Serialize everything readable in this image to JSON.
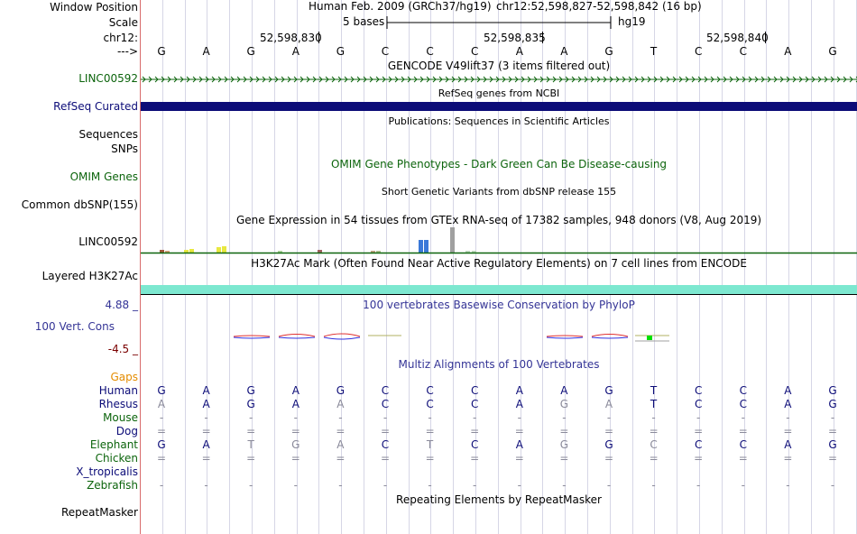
{
  "colors": {
    "lincGreen": "#0c640c",
    "refseqNavy": "#0c0c78",
    "h3k27ac": "#7de8d0",
    "conservation": "#343496",
    "negative": "#7a0000",
    "gaps": "#e48c00",
    "species_green": "#0c640c",
    "species_navy": "#0c0c78"
  },
  "labels": {
    "window_position": "Window Position",
    "scale": "Scale",
    "chrom": "chr12:",
    "arrow": "--->",
    "linc": "LINC00592",
    "refseq": "RefSeq Curated",
    "sequences": "Sequences",
    "snps": "SNPs",
    "omim": "OMIM Genes",
    "dbsnp": "Common dbSNP(155)",
    "gtex": "LINC00592",
    "h3k27ac": "Layered H3K27Ac",
    "cons_max": "4.88 _",
    "cons": "100 Vert. Cons",
    "cons_min": "-4.5 _",
    "gaps": "Gaps",
    "repeatmasker": "RepeatMasker"
  },
  "header": {
    "assembly": "Human Feb. 2009 (GRCh37/hg19)",
    "position": "chr12:52,598,827-52,598,842 (16 bp)",
    "scale_text": "5 bases",
    "scale_db": "hg19",
    "ticks": [
      "52,598,830",
      "52,598,835",
      "52,598,840"
    ]
  },
  "bases": [
    "G",
    "A",
    "G",
    "A",
    "G",
    "C",
    "C",
    "C",
    "A",
    "A",
    "G",
    "T",
    "C",
    "C",
    "A",
    "G"
  ],
  "tracks": {
    "gencode": "GENCODE V49lift37 (3 items filtered out)",
    "refseq": "RefSeq genes from NCBI",
    "publications": "Publications: Sequences in Scientific Articles",
    "omim": "OMIM Gene Phenotypes - Dark Green Can Be Disease-causing",
    "dbsnp": "Short Genetic Variants from dbSNP release 155",
    "gtex": "Gene Expression in 54 tissues from GTEx RNA-seq of 17382 samples, 948 donors (V8, Aug 2019)",
    "h3k27ac": "H3K27Ac Mark (Often Found Near Active Regulatory Elements) on 7 cell lines from ENCODE",
    "phylop": "100 vertebrates Basewise Conservation by PhyloP",
    "multiz": "Multiz Alignments of 100 Vertebrates",
    "repeatmasker": "Repeating Elements by RepeatMasker"
  },
  "alignment": [
    {
      "species": "Human",
      "color": "#0c0c78",
      "bases": [
        "G",
        "A",
        "G",
        "A",
        "G",
        "C",
        "C",
        "C",
        "A",
        "A",
        "G",
        "T",
        "C",
        "C",
        "A",
        "G"
      ],
      "dim": [
        0,
        0,
        0,
        0,
        0,
        0,
        0,
        0,
        0,
        0,
        0,
        0,
        0,
        0,
        0,
        0
      ]
    },
    {
      "species": "Rhesus",
      "color": "#0c0c78",
      "bases": [
        "A",
        "A",
        "G",
        "A",
        "A",
        "C",
        "C",
        "C",
        "A",
        "G",
        "A",
        "T",
        "C",
        "C",
        "A",
        "G"
      ],
      "dim": [
        1,
        0,
        0,
        0,
        1,
        0,
        0,
        0,
        0,
        1,
        1,
        0,
        0,
        0,
        0,
        0
      ]
    },
    {
      "species": "Mouse",
      "color": "#0c640c",
      "bases": [
        "-",
        "-",
        "-",
        "-",
        "-",
        "-",
        "-",
        "-",
        "-",
        "-",
        "-",
        "-",
        "-",
        "-",
        "-",
        "-"
      ],
      "dim": [
        1,
        1,
        1,
        1,
        1,
        1,
        1,
        1,
        1,
        1,
        1,
        1,
        1,
        1,
        1,
        1
      ]
    },
    {
      "species": "Dog",
      "color": "#0c0c78",
      "bases": [
        "=",
        "=",
        "=",
        "=",
        "=",
        "=",
        "=",
        "=",
        "=",
        "=",
        "=",
        "=",
        "=",
        "=",
        "=",
        "="
      ],
      "dim": [
        1,
        1,
        1,
        1,
        1,
        1,
        1,
        1,
        1,
        1,
        1,
        1,
        1,
        1,
        1,
        1
      ]
    },
    {
      "species": "Elephant",
      "color": "#0c640c",
      "bases": [
        "G",
        "A",
        "T",
        "G",
        "A",
        "C",
        "T",
        "C",
        "A",
        "G",
        "G",
        "C",
        "C",
        "C",
        "A",
        "G"
      ],
      "dim": [
        0,
        0,
        1,
        1,
        1,
        0,
        1,
        0,
        0,
        1,
        0,
        1,
        0,
        0,
        0,
        0
      ]
    },
    {
      "species": "Chicken",
      "color": "#0c640c",
      "bases": [
        "=",
        "=",
        "=",
        "=",
        "=",
        "=",
        "=",
        "=",
        "=",
        "=",
        "=",
        "=",
        "=",
        "=",
        "=",
        "="
      ],
      "dim": [
        1,
        1,
        1,
        1,
        1,
        1,
        1,
        1,
        1,
        1,
        1,
        1,
        1,
        1,
        1,
        1
      ]
    },
    {
      "species": "X_tropicalis",
      "color": "#0c0c78",
      "bases": [
        "",
        "",
        "",
        "",
        "",
        "",
        "",
        "",
        "",
        "",
        "",
        "",
        "",
        "",
        "",
        ""
      ],
      "dim": [
        1,
        1,
        1,
        1,
        1,
        1,
        1,
        1,
        1,
        1,
        1,
        1,
        1,
        1,
        1,
        1
      ]
    },
    {
      "species": "Zebrafish",
      "color": "#0c640c",
      "bases": [
        "-",
        "-",
        "-",
        "-",
        "-",
        "-",
        "-",
        "-",
        "-",
        "-",
        "-",
        "-",
        "-",
        "-",
        "-",
        "-"
      ],
      "dim": [
        1,
        1,
        1,
        1,
        1,
        1,
        1,
        1,
        1,
        1,
        1,
        1,
        1,
        1,
        1,
        1
      ]
    }
  ]
}
